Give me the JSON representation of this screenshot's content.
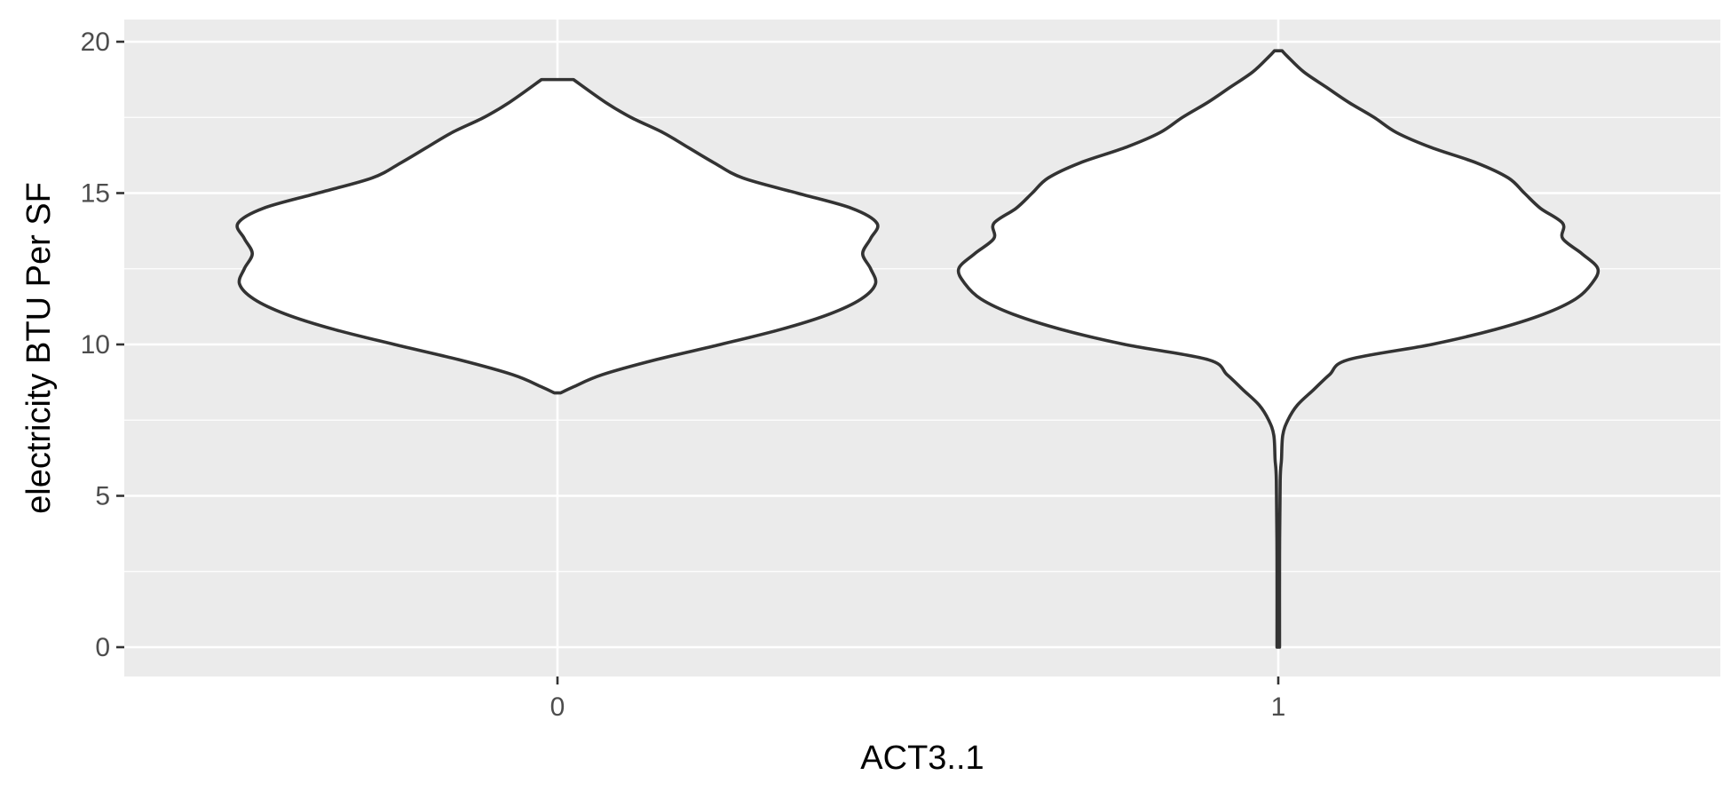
{
  "chart_data": {
    "type": "violin",
    "xlabel": "ACT3..1",
    "ylabel": "electricity BTU Per SF",
    "categories": [
      "0",
      "1"
    ],
    "y_ticks": [
      0,
      5,
      10,
      15,
      20
    ],
    "ylim": [
      -1,
      20.75
    ],
    "grid": true,
    "colors": {
      "panel": "#ebebeb",
      "grid": "#ffffff",
      "outline": "#333333",
      "fill": "#ffffff"
    },
    "violins": [
      {
        "category": "0",
        "min": 8.4,
        "max": 18.75,
        "profile": [
          [
            8.4,
            0.01
          ],
          [
            8.6,
            0.05
          ],
          [
            9.0,
            0.14
          ],
          [
            9.5,
            0.31
          ],
          [
            10.0,
            0.51
          ],
          [
            10.5,
            0.7
          ],
          [
            11.0,
            0.85
          ],
          [
            11.5,
            0.95
          ],
          [
            12.0,
            0.995
          ],
          [
            12.5,
            0.98
          ],
          [
            13.0,
            0.955
          ],
          [
            13.5,
            0.98
          ],
          [
            14.0,
            1.0
          ],
          [
            14.5,
            0.92
          ],
          [
            15.0,
            0.75
          ],
          [
            15.5,
            0.58
          ],
          [
            16.0,
            0.49
          ],
          [
            16.5,
            0.41
          ],
          [
            17.0,
            0.33
          ],
          [
            17.5,
            0.23
          ],
          [
            18.0,
            0.15
          ],
          [
            18.75,
            0.05
          ]
        ]
      },
      {
        "category": "1",
        "min": 0,
        "max": 19.7,
        "profile": [
          [
            0,
            0.004
          ],
          [
            3.0,
            0.004
          ],
          [
            5.5,
            0.006
          ],
          [
            6.2,
            0.01
          ],
          [
            7.0,
            0.014
          ],
          [
            7.5,
            0.03
          ],
          [
            8.0,
            0.06
          ],
          [
            8.5,
            0.11
          ],
          [
            9.0,
            0.16
          ],
          [
            9.5,
            0.22
          ],
          [
            10.0,
            0.48
          ],
          [
            10.5,
            0.68
          ],
          [
            11.0,
            0.83
          ],
          [
            11.5,
            0.93
          ],
          [
            12.0,
            0.98
          ],
          [
            12.5,
            1.0
          ],
          [
            13.0,
            0.95
          ],
          [
            13.5,
            0.89
          ],
          [
            14.0,
            0.89
          ],
          [
            14.5,
            0.82
          ],
          [
            15.0,
            0.77
          ],
          [
            15.5,
            0.72
          ],
          [
            16.0,
            0.62
          ],
          [
            16.5,
            0.48
          ],
          [
            17.0,
            0.37
          ],
          [
            17.5,
            0.3
          ],
          [
            18.0,
            0.22
          ],
          [
            18.5,
            0.15
          ],
          [
            19.0,
            0.08
          ],
          [
            19.5,
            0.03
          ],
          [
            19.7,
            0.012
          ]
        ]
      }
    ]
  }
}
